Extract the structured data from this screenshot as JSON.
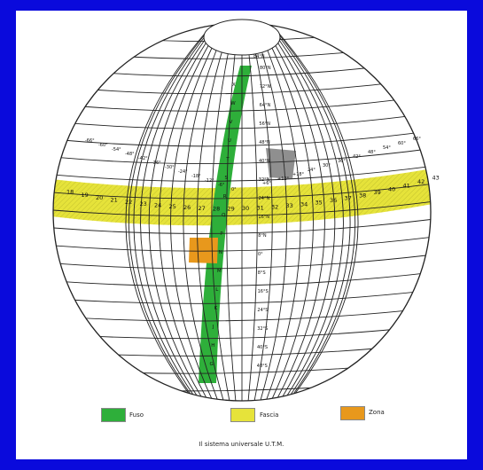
{
  "colors": {
    "page_border": "#0a0adc",
    "panel": "#ffffff",
    "fuso": "#2eaf3a",
    "fascia": "#e6e33a",
    "zona": "#e8981c",
    "grid": "#222222"
  },
  "globe": {
    "top_longitude_label": "84°N",
    "latitude_labels": [
      "80°N",
      "72°N",
      "64°N",
      "56°N",
      "48°N",
      "40°N",
      "32°N",
      "24°N",
      "16°N",
      "8°N",
      "0°",
      "8°S",
      "16°S",
      "24°S",
      "32°S",
      "40°S",
      "48°S"
    ],
    "band_letters": [
      "X",
      "W",
      "V",
      "U",
      "T",
      "S",
      "R",
      "Q",
      "P",
      "N",
      "M",
      "L",
      "K",
      "J",
      "H",
      "G"
    ],
    "longitudes_left": [
      "-66°",
      "-60°",
      "-54°",
      "-48°",
      "-42°",
      "-36°",
      "-30°",
      "-24°",
      "-18°",
      "-12°",
      "-6°",
      "0°"
    ],
    "longitudes_right": [
      "+6°",
      "+12°",
      "+18°",
      "24°",
      "30°",
      "36°",
      "42°",
      "48°",
      "54°",
      "60°",
      "66°"
    ],
    "zone_numbers": [
      "18",
      "19",
      "20",
      "21",
      "22",
      "23",
      "24",
      "25",
      "26",
      "27",
      "28",
      "29",
      "30",
      "31",
      "32",
      "33",
      "34",
      "35",
      "36",
      "37",
      "38",
      "39",
      "40",
      "41",
      "42",
      "43"
    ]
  },
  "legend": {
    "fuso_label": "Fuso",
    "fascia_label": "Fascia",
    "zona_label": "Zona"
  },
  "caption": "Il sistema universale U.T.M."
}
